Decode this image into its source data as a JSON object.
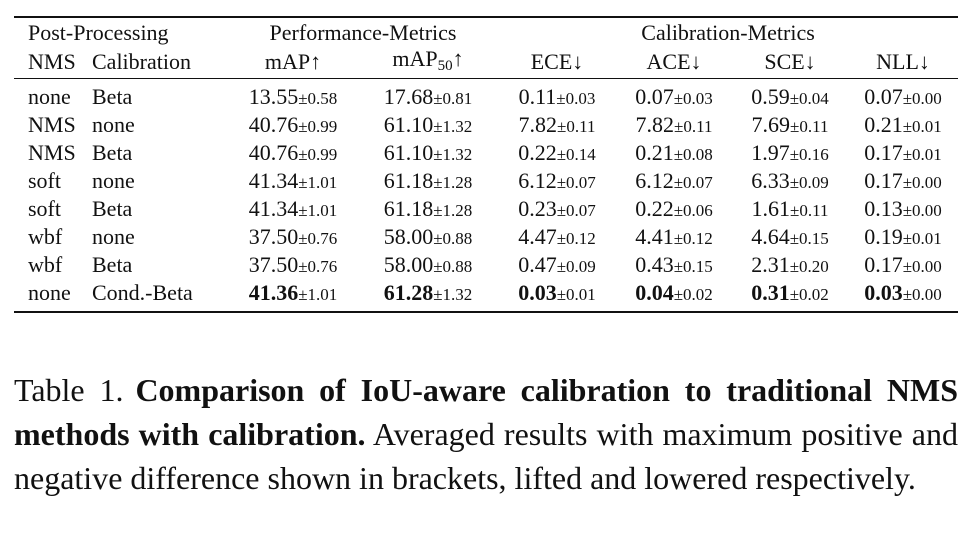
{
  "table": {
    "group_headers": {
      "post_processing": "Post-Processing",
      "performance": "Performance-Metrics",
      "calibration": "Calibration-Metrics"
    },
    "columns": {
      "nms": "NMS",
      "calibration": "Calibration",
      "map": "mAP↑",
      "map50_base": "mAP",
      "map50_sub": "50",
      "map50_arrow": "↑",
      "ece": "ECE↓",
      "ace": "ACE↓",
      "sce": "SCE↓",
      "nll": "NLL↓"
    },
    "rows": [
      {
        "nms": "none",
        "cal": "Beta",
        "map": {
          "v": "13.55",
          "pm": "±0.58",
          "bold": false
        },
        "map50": {
          "v": "17.68",
          "pm": "±0.81",
          "bold": false
        },
        "ece": {
          "v": "0.11",
          "pm": "±0.03",
          "bold": false
        },
        "ace": {
          "v": "0.07",
          "pm": "±0.03",
          "bold": false
        },
        "sce": {
          "v": "0.59",
          "pm": "±0.04",
          "bold": false
        },
        "nll": {
          "v": "0.07",
          "pm": "±0.00",
          "bold": false
        }
      },
      {
        "nms": "NMS",
        "cal": "none",
        "map": {
          "v": "40.76",
          "pm": "±0.99",
          "bold": false
        },
        "map50": {
          "v": "61.10",
          "pm": "±1.32",
          "bold": false
        },
        "ece": {
          "v": "7.82",
          "pm": "±0.11",
          "bold": false
        },
        "ace": {
          "v": "7.82",
          "pm": "±0.11",
          "bold": false
        },
        "sce": {
          "v": "7.69",
          "pm": "±0.11",
          "bold": false
        },
        "nll": {
          "v": "0.21",
          "pm": "±0.01",
          "bold": false
        }
      },
      {
        "nms": "NMS",
        "cal": "Beta",
        "map": {
          "v": "40.76",
          "pm": "±0.99",
          "bold": false
        },
        "map50": {
          "v": "61.10",
          "pm": "±1.32",
          "bold": false
        },
        "ece": {
          "v": "0.22",
          "pm": "±0.14",
          "bold": false
        },
        "ace": {
          "v": "0.21",
          "pm": "±0.08",
          "bold": false
        },
        "sce": {
          "v": "1.97",
          "pm": "±0.16",
          "bold": false
        },
        "nll": {
          "v": "0.17",
          "pm": "±0.01",
          "bold": false
        }
      },
      {
        "nms": "soft",
        "cal": "none",
        "map": {
          "v": "41.34",
          "pm": "±1.01",
          "bold": false
        },
        "map50": {
          "v": "61.18",
          "pm": "±1.28",
          "bold": false
        },
        "ece": {
          "v": "6.12",
          "pm": "±0.07",
          "bold": false
        },
        "ace": {
          "v": "6.12",
          "pm": "±0.07",
          "bold": false
        },
        "sce": {
          "v": "6.33",
          "pm": "±0.09",
          "bold": false
        },
        "nll": {
          "v": "0.17",
          "pm": "±0.00",
          "bold": false
        }
      },
      {
        "nms": "soft",
        "cal": "Beta",
        "map": {
          "v": "41.34",
          "pm": "±1.01",
          "bold": false
        },
        "map50": {
          "v": "61.18",
          "pm": "±1.28",
          "bold": false
        },
        "ece": {
          "v": "0.23",
          "pm": "±0.07",
          "bold": false
        },
        "ace": {
          "v": "0.22",
          "pm": "±0.06",
          "bold": false
        },
        "sce": {
          "v": "1.61",
          "pm": "±0.11",
          "bold": false
        },
        "nll": {
          "v": "0.13",
          "pm": "±0.00",
          "bold": false
        }
      },
      {
        "nms": "wbf",
        "cal": "none",
        "map": {
          "v": "37.50",
          "pm": "±0.76",
          "bold": false
        },
        "map50": {
          "v": "58.00",
          "pm": "±0.88",
          "bold": false
        },
        "ece": {
          "v": "4.47",
          "pm": "±0.12",
          "bold": false
        },
        "ace": {
          "v": "4.41",
          "pm": "±0.12",
          "bold": false
        },
        "sce": {
          "v": "4.64",
          "pm": "±0.15",
          "bold": false
        },
        "nll": {
          "v": "0.19",
          "pm": "±0.01",
          "bold": false
        }
      },
      {
        "nms": "wbf",
        "cal": "Beta",
        "map": {
          "v": "37.50",
          "pm": "±0.76",
          "bold": false
        },
        "map50": {
          "v": "58.00",
          "pm": "±0.88",
          "bold": false
        },
        "ece": {
          "v": "0.47",
          "pm": "±0.09",
          "bold": false
        },
        "ace": {
          "v": "0.43",
          "pm": "±0.15",
          "bold": false
        },
        "sce": {
          "v": "2.31",
          "pm": "±0.20",
          "bold": false
        },
        "nll": {
          "v": "0.17",
          "pm": "±0.00",
          "bold": false
        }
      },
      {
        "nms": "none",
        "cal": "Cond.-Beta",
        "map": {
          "v": "41.36",
          "pm": "±1.01",
          "bold": true
        },
        "map50": {
          "v": "61.28",
          "pm": "±1.32",
          "bold": true
        },
        "ece": {
          "v": "0.03",
          "pm": "±0.01",
          "bold": true
        },
        "ace": {
          "v": "0.04",
          "pm": "±0.02",
          "bold": true
        },
        "sce": {
          "v": "0.31",
          "pm": "±0.02",
          "bold": true
        },
        "nll": {
          "v": "0.03",
          "pm": "±0.00",
          "bold": true
        }
      }
    ]
  },
  "caption": {
    "label": "Table 1.",
    "title": "Comparison of IoU-aware calibration to traditional NMS methods with calibration.",
    "body": "Averaged results with maximum positive and negative difference shown in brackets, lifted and lowered respectively."
  }
}
